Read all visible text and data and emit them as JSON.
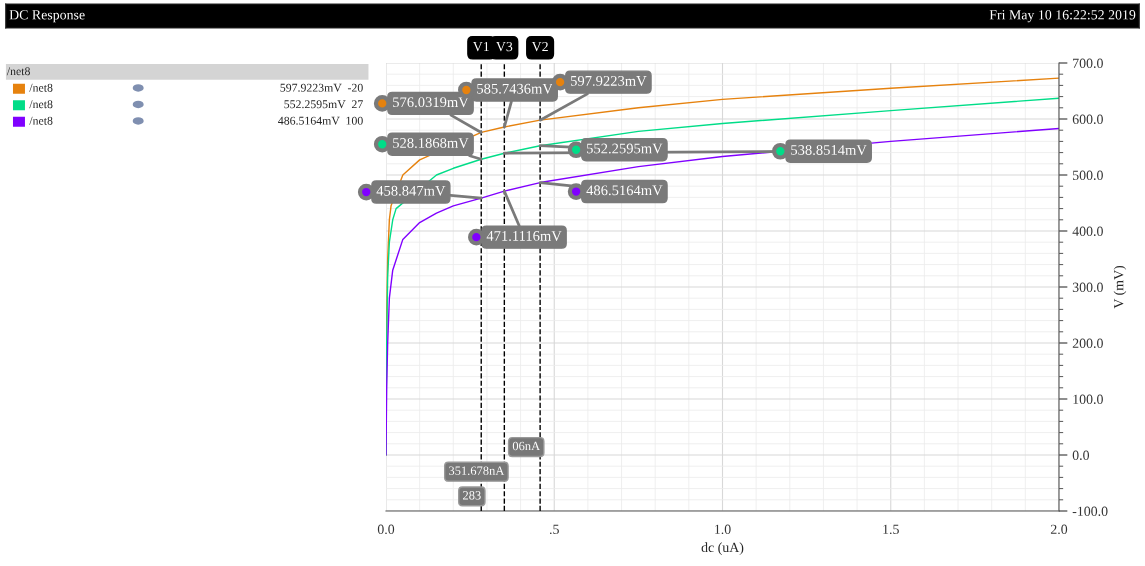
{
  "chart_data": {
    "type": "line",
    "title": "DC Response",
    "subtitle": "Fri May 10 16:22:52 2019",
    "xlabel": "dc (uA)",
    "ylabel": "V (mV)",
    "legend_title": "/net8",
    "x": [
      0,
      0.002,
      0.005,
      0.01,
      0.02,
      0.05,
      0.1,
      0.15,
      0.2,
      0.283,
      0.351678,
      0.458,
      0.75,
      1.0,
      1.5,
      2.0
    ],
    "series": [
      {
        "name": "/net8",
        "color": "#e6820e",
        "x": [
          0,
          0.002,
          0.005,
          0.01,
          0.015,
          0.05,
          0.1,
          0.283,
          0.351678,
          0.458,
          0.75,
          1.0,
          1.5,
          2.0
        ],
        "values": [
          0,
          250,
          350,
          420,
          445,
          500,
          527,
          576.0319,
          585.7436,
          597.9223,
          620,
          635,
          655,
          673
        ]
      },
      {
        "name": "/net8",
        "color": "#00dd88",
        "x": [
          0,
          0.002,
          0.005,
          0.01,
          0.02,
          0.03,
          0.15,
          0.2,
          0.283,
          0.351678,
          0.458,
          0.75,
          1.0,
          1.5,
          2.0
        ],
        "values": [
          0,
          200,
          320,
          380,
          420,
          440,
          500,
          512,
          528.1868,
          538.8514,
          552.2595,
          578,
          592,
          615,
          637
        ]
      },
      {
        "name": "/net8",
        "color": "#8000ff",
        "values": [
          0,
          120,
          200,
          280,
          330,
          385,
          415,
          432,
          445,
          458.847,
          471.1116,
          486.5164,
          515,
          533,
          560,
          583
        ]
      }
    ],
    "xlim": [
      0,
      2.0
    ],
    "ylim": [
      -100,
      700
    ],
    "xticks": [
      {
        "value": 0,
        "label": "0.0"
      },
      {
        "value": 0.5,
        "label": ".5"
      },
      {
        "value": 1.0,
        "label": "1.0"
      },
      {
        "value": 1.5,
        "label": "1.5"
      },
      {
        "value": 2.0,
        "label": "2.0"
      }
    ],
    "yticks": [
      {
        "value": -100,
        "label": "-100.0"
      },
      {
        "value": 0,
        "label": "0.0"
      },
      {
        "value": 100,
        "label": "100.0"
      },
      {
        "value": 200,
        "label": "200.0"
      },
      {
        "value": 300,
        "label": "300.0"
      },
      {
        "value": 400,
        "label": "400.0"
      },
      {
        "value": 500,
        "label": "500.0"
      },
      {
        "value": 600,
        "label": "600.0"
      },
      {
        "value": 700,
        "label": "700.0"
      }
    ],
    "grid": true,
    "legend": "top left",
    "marker": "none",
    "line_style": "solid",
    "ref_lines": [
      {
        "axis": "x",
        "value": 0.283,
        "label": "V1",
        "line_style": "dashed",
        "color": "#000000"
      },
      {
        "axis": "x",
        "value": 0.351678,
        "label": "V3",
        "line_style": "dashed",
        "color": "#000000"
      },
      {
        "axis": "x",
        "value": 0.458,
        "label": "V2",
        "line_style": "dashed",
        "color": "#000000"
      }
    ],
    "annotations": [
      "597.9223mV  -20",
      "552.2595mV  27",
      "486.5164mV  100",
      "283",
      "351.678nA",
      "06nA",
      {
        "text": "576.0319mV",
        "x": 0.283,
        "y": 576.0319
      },
      {
        "text": "585.7436mV",
        "x": 0.351678,
        "y": 585.7436
      },
      {
        "text": "597.9223mV",
        "x": 0.458,
        "y": 597.9223
      },
      {
        "text": "528.1868mV",
        "x": 0.283,
        "y": 528.1868
      },
      {
        "text": "538.8514mV",
        "x": 0.351678,
        "y": 538.8514
      },
      {
        "text": "552.2595mV",
        "x": 0.458,
        "y": 552.2595
      },
      {
        "text": "458.847mV",
        "x": 0.283,
        "y": 458.847
      },
      {
        "text": "471.1116mV",
        "x": 0.351678,
        "y": 471.1116
      },
      {
        "text": "486.5164mV",
        "x": 0.458,
        "y": 486.5164
      }
    ]
  }
}
